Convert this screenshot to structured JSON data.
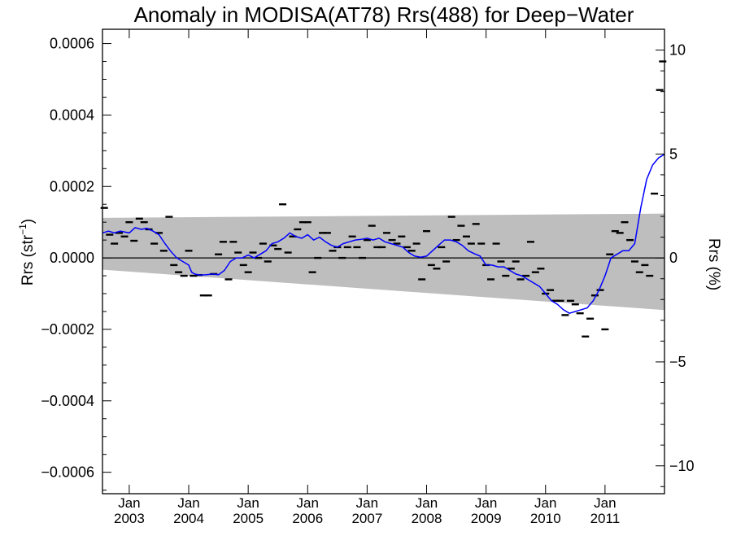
{
  "chart_data": {
    "type": "scatter",
    "title": "Anomaly in MODISA(AT78) Rrs(488) for Deep−Water",
    "ylabel_left": "Rrs (str",
    "ylabel_left_sup": "−1",
    "ylabel_left_close": ")",
    "ylabel_right": "Rrs (%)",
    "xlim": [
      2002.55,
      2012.0
    ],
    "ylim": [
      -0.00066,
      0.00064
    ],
    "ylim_right_percent": [
      -11.34,
      11.0
    ],
    "x_ticks": [
      {
        "value": 2003.0,
        "month": "Jan",
        "year": "2003"
      },
      {
        "value": 2004.0,
        "month": "Jan",
        "year": "2004"
      },
      {
        "value": 2005.0,
        "month": "Jan",
        "year": "2005"
      },
      {
        "value": 2006.0,
        "month": "Jan",
        "year": "2006"
      },
      {
        "value": 2007.0,
        "month": "Jan",
        "year": "2007"
      },
      {
        "value": 2008.0,
        "month": "Jan",
        "year": "2008"
      },
      {
        "value": 2009.0,
        "month": "Jan",
        "year": "2009"
      },
      {
        "value": 2010.0,
        "month": "Jan",
        "year": "2010"
      },
      {
        "value": 2011.0,
        "month": "Jan",
        "year": "2011"
      }
    ],
    "y_ticks_left": [
      {
        "value": 0.0006,
        "label": "0.0006"
      },
      {
        "value": 0.0004,
        "label": "0.0004"
      },
      {
        "value": 0.0002,
        "label": "0.0002"
      },
      {
        "value": 0.0,
        "label": "0.0000"
      },
      {
        "value": -0.0002,
        "label": "−0.0002"
      },
      {
        "value": -0.0004,
        "label": "−0.0004"
      },
      {
        "value": -0.0006,
        "label": "−0.0006"
      }
    ],
    "y_ticks_right": [
      {
        "value": 10,
        "label": "10"
      },
      {
        "value": 5,
        "label": "5"
      },
      {
        "value": 0,
        "label": "0"
      },
      {
        "value": -5,
        "label": "−5"
      },
      {
        "value": -10,
        "label": "−10"
      }
    ],
    "band": {
      "x": [
        2002.55,
        2012.0
      ],
      "upper": [
        0.000112,
        0.000124
      ],
      "lower": [
        -3.3e-05,
        -0.000146
      ],
      "color": "#bebebe"
    },
    "zero_line": 0,
    "series": [
      {
        "kind": "points",
        "color": "#000000",
        "x": [
          2002.58,
          2002.67,
          2002.75,
          2002.83,
          2002.92,
          2003.0,
          2003.08,
          2003.17,
          2003.25,
          2003.33,
          2003.42,
          2003.5,
          2003.58,
          2003.67,
          2003.75,
          2003.83,
          2003.92,
          2004.0,
          2004.08,
          2004.17,
          2004.25,
          2004.33,
          2004.42,
          2004.5,
          2004.58,
          2004.67,
          2004.75,
          2004.83,
          2004.92,
          2005.0,
          2005.08,
          2005.17,
          2005.25,
          2005.33,
          2005.42,
          2005.5,
          2005.58,
          2005.67,
          2005.75,
          2005.83,
          2005.92,
          2006.0,
          2006.08,
          2006.17,
          2006.25,
          2006.33,
          2006.42,
          2006.5,
          2006.58,
          2006.67,
          2006.75,
          2006.83,
          2006.92,
          2007.0,
          2007.08,
          2007.17,
          2007.25,
          2007.33,
          2007.42,
          2007.5,
          2007.58,
          2007.67,
          2007.75,
          2007.83,
          2007.92,
          2008.0,
          2008.08,
          2008.17,
          2008.25,
          2008.33,
          2008.42,
          2008.5,
          2008.58,
          2008.67,
          2008.75,
          2008.83,
          2008.92,
          2009.0,
          2009.08,
          2009.17,
          2009.25,
          2009.33,
          2009.42,
          2009.5,
          2009.58,
          2009.67,
          2009.75,
          2009.83,
          2009.92,
          2010.0,
          2010.08,
          2010.17,
          2010.25,
          2010.33,
          2010.42,
          2010.5,
          2010.58,
          2010.67,
          2010.75,
          2010.83,
          2010.92,
          2011.0,
          2011.08,
          2011.17,
          2011.25,
          2011.33,
          2011.42,
          2011.5,
          2011.58,
          2011.67,
          2011.75,
          2011.83,
          2011.92,
          2011.97
        ],
        "y": [
          0.00014,
          6.5e-05,
          4e-05,
          7e-05,
          6e-05,
          0.0001,
          4.8e-05,
          0.00011,
          0.0001,
          8e-05,
          4e-05,
          7e-05,
          2e-05,
          0.000115,
          -2e-05,
          -4e-05,
          -5e-05,
          2e-05,
          -5e-05,
          -4.8e-05,
          -0.000105,
          -0.000105,
          -4.5e-05,
          1e-05,
          4.5e-05,
          -6e-05,
          4.5e-05,
          1.5e-05,
          -2e-05,
          -4e-05,
          1.5e-05,
          0.0,
          4e-05,
          -1e-05,
          3.5e-05,
          2.5e-05,
          0.00015,
          1.5e-05,
          6e-05,
          8e-05,
          0.0001,
          0.0001,
          -4e-05,
          0.0,
          7e-05,
          7e-05,
          2e-05,
          3e-05,
          0.0,
          3e-05,
          6e-05,
          3e-05,
          0.0,
          5e-05,
          9e-05,
          3e-05,
          3e-05,
          7e-05,
          5e-05,
          4e-05,
          6e-05,
          3e-05,
          2e-05,
          4e-05,
          -6e-05,
          7.5e-05,
          -2e-05,
          -3e-05,
          3e-05,
          -1e-05,
          0.000115,
          5e-05,
          9e-05,
          6e-05,
          4e-05,
          9.5e-05,
          4e-05,
          -2e-05,
          -6e-05,
          4e-05,
          -1e-05,
          -5e-05,
          -3e-05,
          -1e-05,
          -6e-05,
          -5e-05,
          4.5e-05,
          -4e-05,
          -3e-05,
          -0.0001,
          -9e-05,
          -0.00012,
          -0.00012,
          -0.00016,
          -0.00012,
          -0.00013,
          -0.000155,
          -0.00022,
          -0.00017,
          -0.000105,
          -9e-05,
          -0.0002,
          1e-05,
          7.5e-05,
          7e-05,
          0.0001,
          5e-05,
          -1e-05,
          -4e-05,
          -2e-05,
          -5e-05,
          0.00018,
          0.00047,
          0.00055
        ]
      },
      {
        "kind": "line",
        "color": "#0000ff",
        "x": [
          2002.55,
          2002.65,
          2002.75,
          2002.85,
          2003.0,
          2003.1,
          2003.2,
          2003.3,
          2003.4,
          2003.5,
          2003.6,
          2003.7,
          2003.8,
          2003.9,
          2004.0,
          2004.05,
          2004.1,
          2004.2,
          2004.3,
          2004.4,
          2004.5,
          2004.6,
          2004.7,
          2004.8,
          2004.9,
          2005.0,
          2005.1,
          2005.2,
          2005.3,
          2005.4,
          2005.5,
          2005.6,
          2005.7,
          2005.8,
          2005.9,
          2006.0,
          2006.1,
          2006.2,
          2006.3,
          2006.4,
          2006.5,
          2006.6,
          2006.7,
          2006.8,
          2006.9,
          2007.0,
          2007.1,
          2007.2,
          2007.3,
          2007.4,
          2007.5,
          2007.6,
          2007.7,
          2007.8,
          2007.9,
          2008.0,
          2008.1,
          2008.2,
          2008.3,
          2008.4,
          2008.5,
          2008.6,
          2008.7,
          2008.8,
          2008.9,
          2009.0,
          2009.1,
          2009.2,
          2009.3,
          2009.4,
          2009.5,
          2009.6,
          2009.7,
          2009.8,
          2009.9,
          2010.0,
          2010.1,
          2010.2,
          2010.3,
          2010.4,
          2010.5,
          2010.6,
          2010.7,
          2010.8,
          2010.9,
          2011.0,
          2011.1,
          2011.2,
          2011.3,
          2011.4,
          2011.5,
          2011.6,
          2011.7,
          2011.8,
          2011.9,
          2012.0
        ],
        "y": [
          7e-05,
          7.5e-05,
          7e-05,
          7.5e-05,
          7e-05,
          8.5e-05,
          8e-05,
          8.3e-05,
          7.5e-05,
          6.5e-05,
          4e-05,
          1.8e-05,
          0.0,
          -1e-05,
          -2e-05,
          -4e-05,
          -4.5e-05,
          -4.8e-05,
          -4.7e-05,
          -4.5e-05,
          -4.7e-05,
          -3.5e-05,
          -1e-05,
          0.0,
          0.0,
          8e-06,
          0.0,
          1e-05,
          2e-05,
          4e-05,
          4.5e-05,
          5.5e-05,
          7e-05,
          6e-05,
          5.5e-05,
          6.5e-05,
          5e-05,
          5.8e-05,
          4.5e-05,
          3.5e-05,
          3e-05,
          4e-05,
          4.5e-05,
          5e-05,
          5.2e-05,
          5.5e-05,
          5e-05,
          5.5e-05,
          4.5e-05,
          4e-05,
          3.5e-05,
          3e-05,
          1.5e-05,
          5e-06,
          2e-06,
          5e-06,
          2e-05,
          3.5e-05,
          5e-05,
          5e-05,
          4.5e-05,
          3.5e-05,
          2e-05,
          1.2e-05,
          5e-06,
          -2e-05,
          -2e-05,
          -2.5e-05,
          -2.5e-05,
          -3.5e-05,
          -4.5e-05,
          -5e-05,
          -6e-05,
          -7e-05,
          -8e-05,
          -0.0001,
          -0.00012,
          -0.00013,
          -0.000145,
          -0.000155,
          -0.00015,
          -0.000145,
          -0.00014,
          -0.00012,
          -9e-05,
          -5e-05,
          0.0,
          1e-05,
          2e-05,
          2e-05,
          4e-05,
          0.00014,
          0.00022,
          0.00026,
          0.00028,
          0.00029
        ]
      }
    ]
  }
}
